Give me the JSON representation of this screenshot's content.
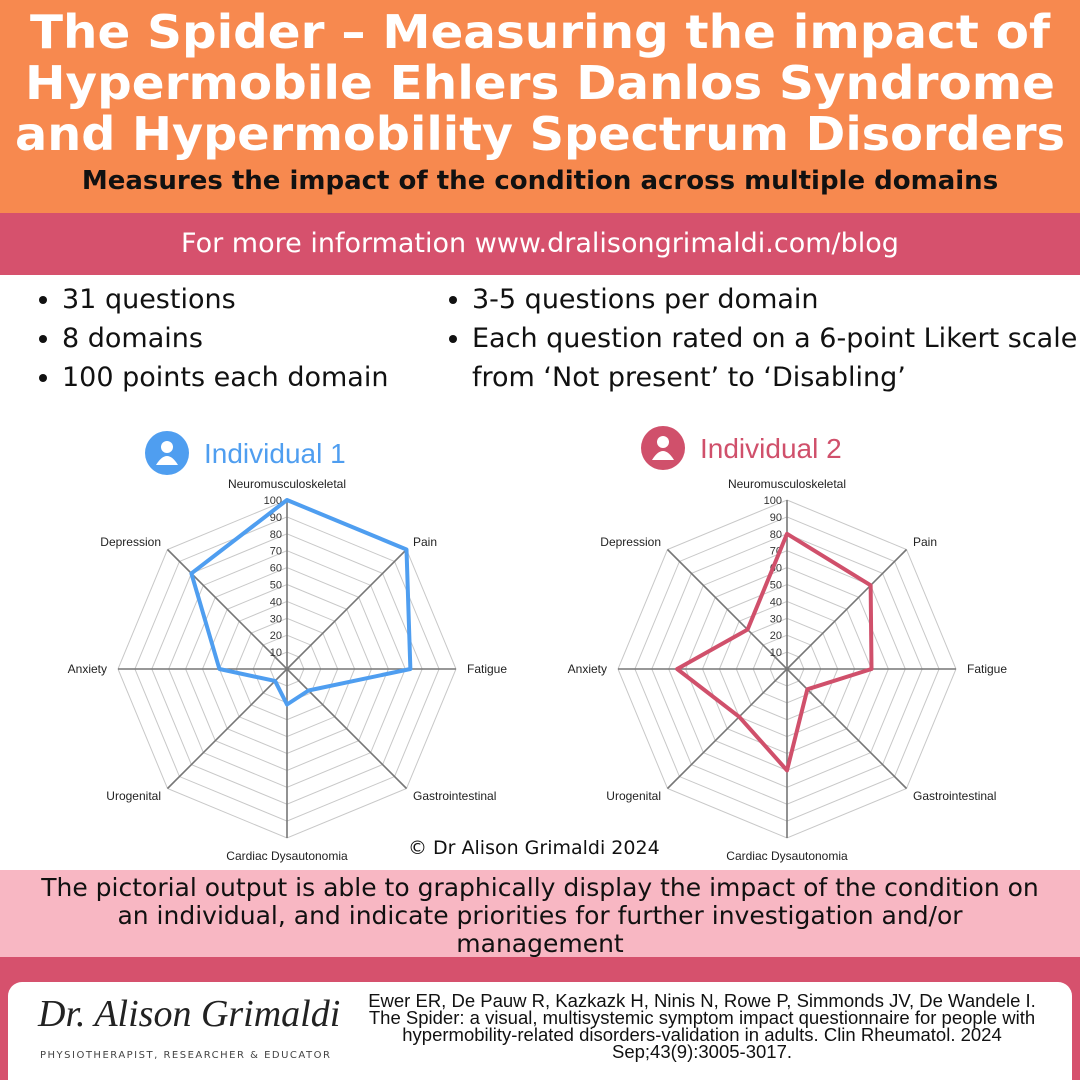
{
  "header": {
    "title": [
      "The Spider – Measuring the impact of",
      "Hypermobile Ehlers Danlos Syndrome",
      "and Hypermobility Spectrum Disorders"
    ],
    "subtitle": "Measures the impact of the condition across multiple domains"
  },
  "banner": "For more information www.dralisongrimaldi.com/blog",
  "bullets": {
    "left": [
      "31 questions",
      "8 domains",
      "100 points each domain"
    ],
    "right": [
      "3-5 questions per domain",
      "Each question rated on a 6-point Likert scale from  ‘Not present’ to ‘Disabling’"
    ]
  },
  "chart_data": [
    {
      "type": "radar",
      "title": "Individual 1",
      "color": "#4f9ef0",
      "categories": [
        "Neuromusculoskeletal",
        "Pain",
        "Fatigue",
        "Gastrointestinal",
        "Cardiac Dysautonomia",
        "Urogenital",
        "Anxiety",
        "Depression"
      ],
      "values": [
        100,
        100,
        73,
        18,
        21,
        10,
        40,
        80
      ],
      "ylim": [
        0,
        100
      ],
      "yticks": [
        10,
        20,
        30,
        40,
        50,
        60,
        70,
        80,
        90,
        100
      ]
    },
    {
      "type": "radar",
      "title": "Individual 2",
      "color": "#d0506b",
      "categories": [
        "Neuromusculoskeletal",
        "Pain",
        "Fatigue",
        "Gastrointestinal",
        "Cardiac Dysautonomia",
        "Urogenital",
        "Anxiety",
        "Depression"
      ],
      "values": [
        80,
        70,
        50,
        17,
        60,
        40,
        65,
        33
      ],
      "ylim": [
        0,
        100
      ],
      "yticks": [
        10,
        20,
        30,
        40,
        50,
        60,
        70,
        80,
        90,
        100
      ]
    }
  ],
  "copyright": "© Dr Alison Grimaldi 2024",
  "summary": "The pictorial output is able to graphically display the impact of the condition on an individual, and indicate priorities for further investigation and/or management",
  "logo": {
    "name": "Dr. Alison Grimaldi",
    "tagline": "PHYSIOTHERAPIST, RESEARCHER & EDUCATOR"
  },
  "citation": "Ewer ER, De Pauw R, Kazkazk H, Ninis N, Rowe P, Simmonds JV, De Wandele I. The Spider: a visual, multisystemic symptom impact questionnaire for people with hypermobility-related disorders-validation in adults. Clin Rheumatol. 2024 Sep;43(9):3005-3017."
}
